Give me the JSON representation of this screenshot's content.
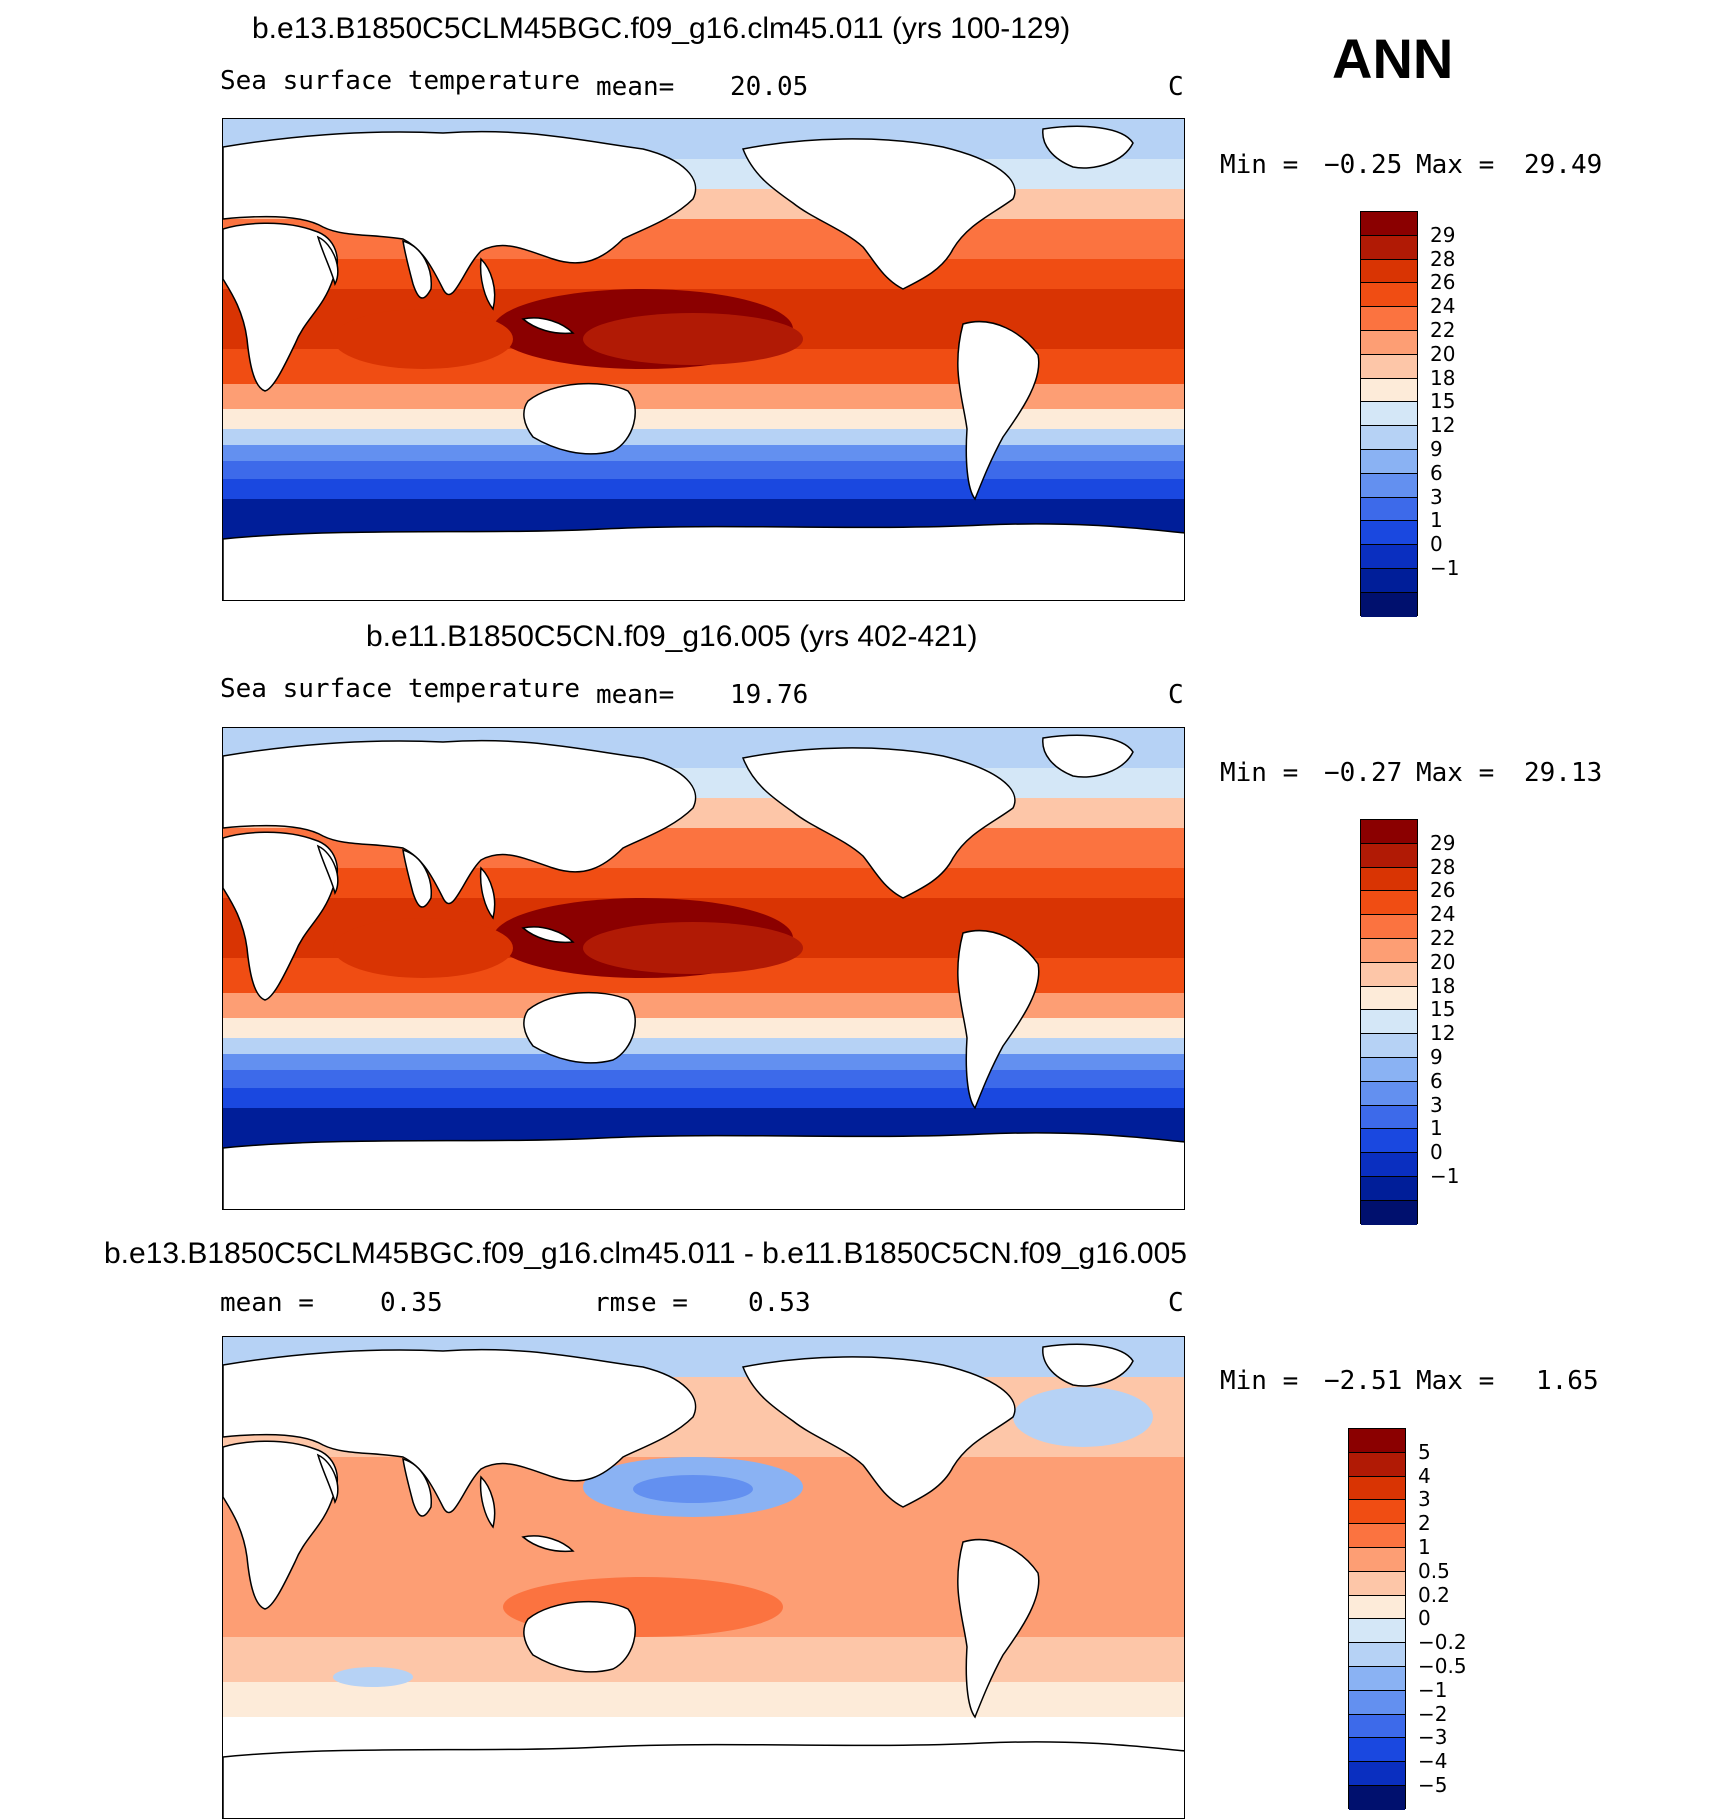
{
  "season": "ANN",
  "panels": [
    {
      "title": "b.e13.B1850C5CLM45BGC.f09_g16.clm45.011 (yrs 100-129)",
      "variable": "Sea surface temperature",
      "stat_label": "mean=",
      "stat_value": "20.05",
      "units": "C",
      "min_label": "Min =",
      "min_value": "−0.25",
      "max_label": "Max =",
      "max_value": "29.49",
      "colorbar_labels": [
        "29",
        "28",
        "26",
        "24",
        "22",
        "20",
        "18",
        "15",
        "12",
        "9",
        "6",
        "3",
        "1",
        "0",
        "−1"
      ],
      "colors": [
        "#8b0000",
        "#b11a05",
        "#d93403",
        "#f04d13",
        "#fb7340",
        "#fd9e74",
        "#fdc6a8",
        "#fdebd9",
        "#d4e7f7",
        "#b6d2f5",
        "#8ab2f3",
        "#6390f0",
        "#3d6aea",
        "#1a48e0",
        "#0a2fc0",
        "#001e99",
        "#00106e"
      ]
    },
    {
      "title": "b.e11.B1850C5CN.f09_g16.005 (yrs 402-421)",
      "variable": "Sea surface temperature",
      "stat_label": "mean=",
      "stat_value": "19.76",
      "units": "C",
      "min_label": "Min =",
      "min_value": "−0.27",
      "max_label": "Max =",
      "max_value": "29.13",
      "colorbar_labels": [
        "29",
        "28",
        "26",
        "24",
        "22",
        "20",
        "18",
        "15",
        "12",
        "9",
        "6",
        "3",
        "1",
        "0",
        "−1"
      ],
      "colors": [
        "#8b0000",
        "#b11a05",
        "#d93403",
        "#f04d13",
        "#fb7340",
        "#fd9e74",
        "#fdc6a8",
        "#fdebd9",
        "#d4e7f7",
        "#b6d2f5",
        "#8ab2f3",
        "#6390f0",
        "#3d6aea",
        "#1a48e0",
        "#0a2fc0",
        "#001e99",
        "#00106e"
      ]
    },
    {
      "title": "b.e13.B1850C5CLM45BGC.f09_g16.clm45.011 - b.e11.B1850C5CN.f09_g16.005",
      "mean_label": "mean =",
      "mean_value": "0.35",
      "rmse_label": "rmse =",
      "rmse_value": "0.53",
      "units": "C",
      "min_label": "Min =",
      "min_value": "−2.51",
      "max_label": "Max =",
      "max_value": "1.65",
      "colorbar_labels": [
        "5",
        "4",
        "3",
        "2",
        "1",
        "0.5",
        "0.2",
        "0",
        "−0.2",
        "−0.5",
        "−1",
        "−2",
        "−3",
        "−4",
        "−5"
      ],
      "colors": [
        "#8b0000",
        "#b11a05",
        "#d93403",
        "#f04d13",
        "#fb7340",
        "#fd9e74",
        "#fdc6a8",
        "#fdebd9",
        "#d4e7f7",
        "#b6d2f5",
        "#8ab2f3",
        "#6390f0",
        "#3d6aea",
        "#1a48e0",
        "#0a2fc0",
        "#00106e"
      ]
    }
  ]
}
